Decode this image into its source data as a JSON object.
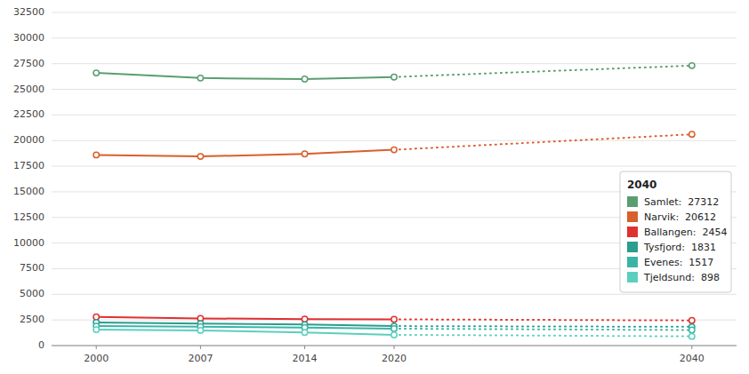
{
  "chart_data": {
    "type": "line",
    "x": [
      2000,
      2007,
      2014,
      2020,
      2040
    ],
    "series": [
      {
        "name": "Samlet:  27312",
        "color": "#5a9e6f",
        "values": [
          26600,
          26100,
          26000,
          26200,
          27312
        ],
        "marker": "circle",
        "line_style": "projection"
      },
      {
        "name": "Narvik:  20612",
        "color": "#d95f2b",
        "values": [
          18600,
          18450,
          18700,
          19100,
          20612
        ],
        "marker": "circle",
        "line_style": "projection"
      },
      {
        "name": "Ballangen:  2454",
        "color": "#e03030",
        "values": [
          2800,
          2650,
          2580,
          2560,
          2454
        ],
        "marker": "circle",
        "line_style": "projection"
      },
      {
        "name": "Tysfjord:  1831",
        "color": "#2a9d8f",
        "values": [
          2250,
          2150,
          2050,
          1900,
          1831
        ],
        "marker": "circle",
        "line_style": "projection"
      },
      {
        "name": "Evenes:  1517",
        "color": "#3ab5a5",
        "values": [
          1900,
          1850,
          1750,
          1650,
          1517
        ],
        "marker": "circle",
        "line_style": "projection"
      },
      {
        "name": "Tjeldsund:  898",
        "color": "#5acfc0",
        "values": [
          1550,
          1480,
          1280,
          1050,
          898
        ],
        "marker": "circle",
        "line_style": "projection"
      }
    ],
    "legend_title": "2040",
    "legend": "lower right",
    "xlim": [
      1997,
      2043
    ],
    "xticks": [
      2000,
      2007,
      2014,
      2020,
      2040
    ],
    "ylim": [
      0,
      32500
    ],
    "yticks": [
      0,
      2500,
      5000,
      7500,
      10000,
      12500,
      15000,
      17500,
      20000,
      22500,
      25000,
      27500,
      30000,
      32500
    ],
    "grid": true
  }
}
